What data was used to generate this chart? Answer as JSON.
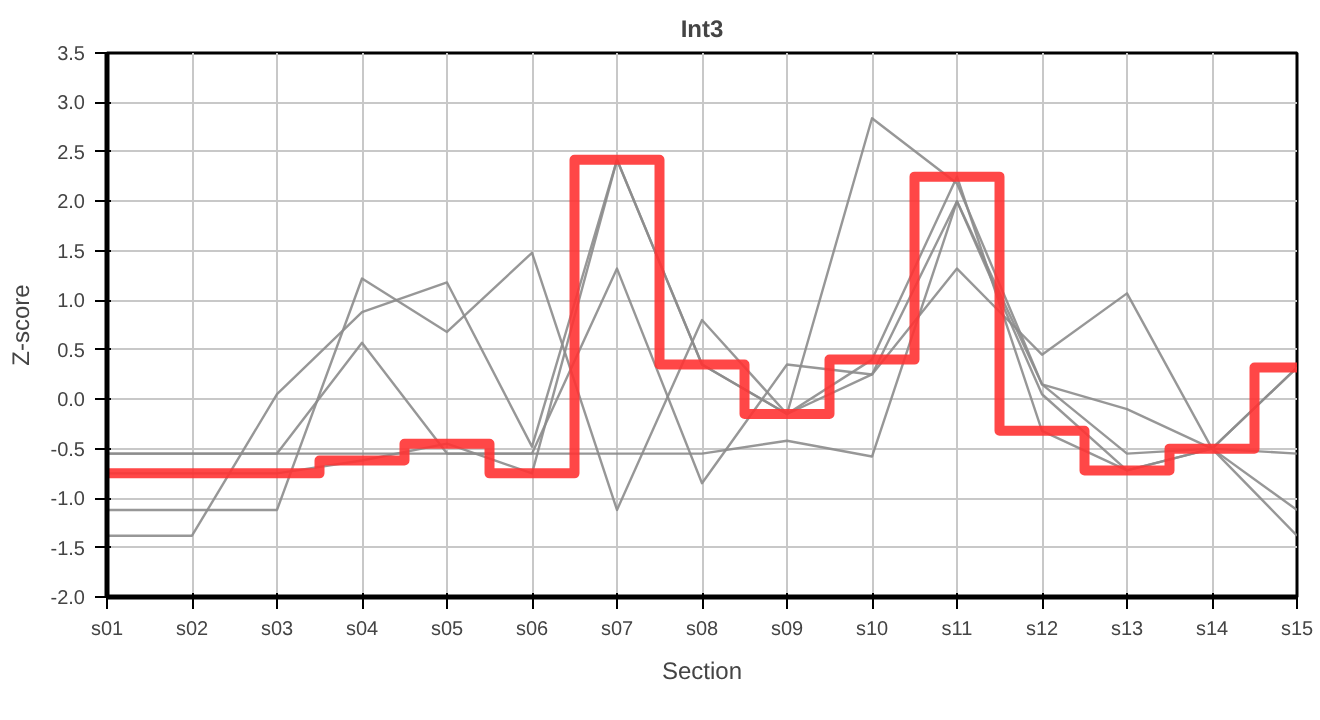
{
  "chart_data": {
    "type": "line",
    "title": "Int3",
    "xlabel": "Section",
    "ylabel": "Z-score",
    "categories": [
      "s01",
      "s02",
      "s03",
      "s04",
      "s05",
      "s06",
      "s07",
      "s08",
      "s09",
      "s10",
      "s11",
      "s12",
      "s13",
      "s14",
      "s15"
    ],
    "series": [
      {
        "color": "#8c8c8c",
        "values": [
          -0.75,
          -0.75,
          -0.75,
          -0.62,
          -0.45,
          -0.75,
          2.42,
          0.35,
          -0.15,
          0.4,
          2.25,
          -0.32,
          -0.72,
          -0.5,
          0.32
        ]
      },
      {
        "color": "#8c8c8c",
        "values": [
          -1.12,
          -1.12,
          -1.12,
          1.22,
          0.68,
          1.48,
          -1.12,
          0.8,
          -0.15,
          2.84,
          2.18,
          0.15,
          -0.55,
          -0.5,
          -0.55
        ]
      },
      {
        "color": "#8c8c8c",
        "values": [
          -1.38,
          -1.38,
          0.05,
          0.88,
          1.18,
          -0.48,
          2.42,
          0.35,
          -0.15,
          0.25,
          2.0,
          0.05,
          -0.72,
          -0.5,
          0.32
        ]
      },
      {
        "color": "#8c8c8c",
        "values": [
          -0.55,
          -0.55,
          -0.55,
          0.57,
          -0.55,
          -0.55,
          1.32,
          -0.85,
          0.35,
          0.25,
          1.32,
          0.45,
          1.07,
          -0.5,
          -1.38
        ]
      },
      {
        "color": "#8c8c8c",
        "values": [
          -0.55,
          -0.55,
          -0.55,
          -0.55,
          -0.55,
          -0.55,
          -0.55,
          -0.55,
          -0.42,
          -0.58,
          2.0,
          0.15,
          -0.1,
          -0.5,
          -1.12
        ]
      },
      {
        "type": "step",
        "color": "#ff3333",
        "values": [
          -0.75,
          -0.75,
          -0.75,
          -0.62,
          -0.45,
          -0.75,
          2.42,
          0.35,
          -0.15,
          0.4,
          2.25,
          -0.32,
          -0.72,
          -0.5,
          0.32
        ]
      }
    ],
    "ylim": [
      -2.0,
      3.5
    ],
    "yticks": [
      {
        "value": -2,
        "label": "-2.0"
      },
      {
        "value": -1.5,
        "label": "-1.5"
      },
      {
        "value": -1,
        "label": "-1.0"
      },
      {
        "value": -0.5,
        "label": "-0.5"
      },
      {
        "value": 0,
        "label": "0.0"
      },
      {
        "value": 0.5,
        "label": "0.5"
      },
      {
        "value": 1,
        "label": "1.0"
      },
      {
        "value": 1.5,
        "label": "1.5"
      },
      {
        "value": 2,
        "label": "2.0"
      },
      {
        "value": 2.5,
        "label": "2.5"
      },
      {
        "value": 3,
        "label": "3.0"
      },
      {
        "value": 3.5,
        "label": "3.5"
      }
    ],
    "grid": true
  }
}
